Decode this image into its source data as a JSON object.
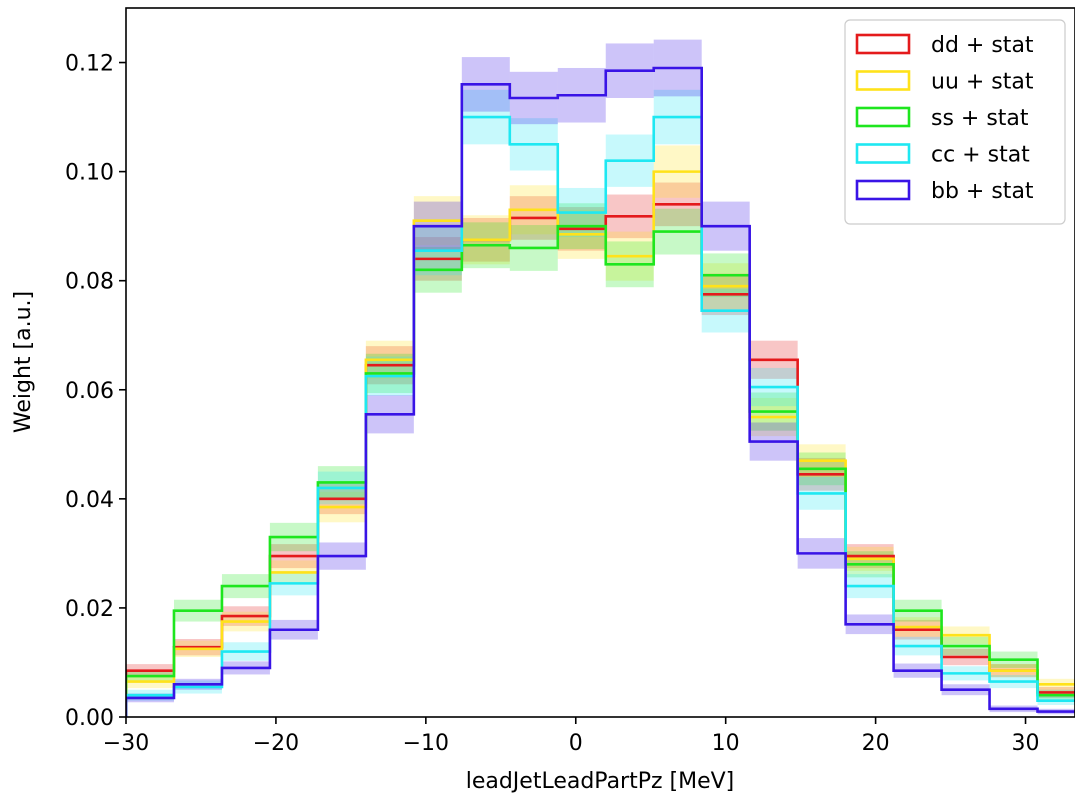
{
  "chart_data": {
    "type": "step-histogram",
    "title": "",
    "xlabel": "leadJetLeadPartPz [MeV]",
    "ylabel": "Weight [a.u.]",
    "xlim": [
      -30,
      33.3
    ],
    "ylim": [
      0,
      0.13
    ],
    "x_ticks": [
      -30,
      -20,
      -10,
      0,
      10,
      20,
      30
    ],
    "x_tick_labels": [
      "−30",
      "−20",
      "−10",
      "0",
      "10",
      "20",
      "30"
    ],
    "y_ticks": [
      0,
      0.02,
      0.04,
      0.06,
      0.08,
      0.1,
      0.12
    ],
    "y_tick_labels": [
      "0.00",
      "0.02",
      "0.04",
      "0.06",
      "0.08",
      "0.10",
      "0.12"
    ],
    "bin_edges": [
      -30.0,
      -26.8,
      -23.6,
      -20.4,
      -17.2,
      -14.0,
      -10.8,
      -7.6,
      -4.4,
      -1.2,
      2.0,
      5.2,
      8.4,
      11.6,
      14.8,
      18.0,
      21.2,
      24.4,
      27.6,
      30.8,
      34.0
    ],
    "grid": false,
    "legend_position": "top-right",
    "series": [
      {
        "name": "dd + stat",
        "color": "#e41a1c",
        "values": [
          0.0085,
          0.0128,
          0.0185,
          0.0295,
          0.04,
          0.0645,
          0.084,
          0.0875,
          0.0915,
          0.0895,
          0.0918,
          0.094,
          0.0775,
          0.0655,
          0.0445,
          0.0295,
          0.016,
          0.011,
          0.0085,
          0.0045
        ],
        "errors": [
          0.0012,
          0.0015,
          0.0018,
          0.0022,
          0.0028,
          0.0035,
          0.004,
          0.004,
          0.004,
          0.004,
          0.004,
          0.004,
          0.0038,
          0.0035,
          0.003,
          0.0022,
          0.0018,
          0.0015,
          0.0012,
          0.001
        ]
      },
      {
        "name": "uu + stat",
        "color": "#ffe21a",
        "values": [
          0.0065,
          0.0125,
          0.0175,
          0.0265,
          0.0385,
          0.0655,
          0.091,
          0.0875,
          0.093,
          0.0885,
          0.0845,
          0.1,
          0.079,
          0.055,
          0.047,
          0.029,
          0.0165,
          0.015,
          0.0085,
          0.006
        ],
        "errors": [
          0.0012,
          0.0015,
          0.0018,
          0.0022,
          0.0028,
          0.0035,
          0.0045,
          0.0045,
          0.0045,
          0.0045,
          0.0045,
          0.0048,
          0.0042,
          0.0035,
          0.003,
          0.0022,
          0.0018,
          0.0016,
          0.0012,
          0.001
        ]
      },
      {
        "name": "ss + stat",
        "color": "#1ee61e",
        "values": [
          0.0075,
          0.0195,
          0.024,
          0.033,
          0.043,
          0.063,
          0.082,
          0.0865,
          0.086,
          0.09,
          0.083,
          0.089,
          0.081,
          0.056,
          0.0455,
          0.028,
          0.0195,
          0.013,
          0.0105,
          0.004
        ],
        "errors": [
          0.0012,
          0.002,
          0.0022,
          0.0026,
          0.003,
          0.0036,
          0.0042,
          0.0042,
          0.0042,
          0.0042,
          0.0042,
          0.0042,
          0.004,
          0.0035,
          0.003,
          0.0024,
          0.002,
          0.0017,
          0.0015,
          0.001
        ]
      },
      {
        "name": "cc + stat",
        "color": "#1ee8f2",
        "values": [
          0.004,
          0.0055,
          0.012,
          0.0245,
          0.042,
          0.0625,
          0.0855,
          0.11,
          0.105,
          0.0925,
          0.102,
          0.11,
          0.0745,
          0.0605,
          0.041,
          0.024,
          0.013,
          0.008,
          0.0065,
          0.003
        ],
        "errors": [
          0.001,
          0.0012,
          0.0017,
          0.0022,
          0.003,
          0.0036,
          0.0045,
          0.005,
          0.0048,
          0.0045,
          0.0048,
          0.005,
          0.004,
          0.0035,
          0.003,
          0.0022,
          0.0017,
          0.0013,
          0.0012,
          0.0008
        ]
      },
      {
        "name": "bb + stat",
        "color": "#3914e6",
        "values": [
          0.0035,
          0.006,
          0.009,
          0.016,
          0.0295,
          0.0555,
          0.09,
          0.116,
          0.1135,
          0.114,
          0.1185,
          0.119,
          0.09,
          0.0505,
          0.03,
          0.017,
          0.0085,
          0.005,
          0.0015,
          0.001
        ],
        "errors": [
          0.0008,
          0.001,
          0.0012,
          0.0018,
          0.0025,
          0.0035,
          0.0045,
          0.005,
          0.0048,
          0.005,
          0.005,
          0.0052,
          0.0045,
          0.0035,
          0.0028,
          0.0018,
          0.0013,
          0.001,
          0.0006,
          0.0005
        ]
      }
    ]
  }
}
